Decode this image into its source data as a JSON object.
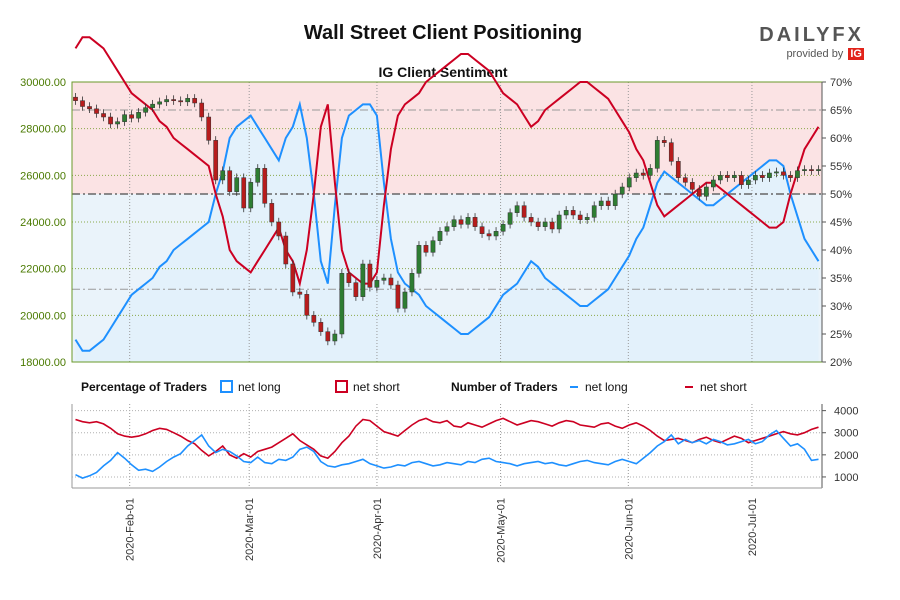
{
  "header": {
    "title": "Wall Street Client Positioning",
    "brand_name": "DAILYFX",
    "brand_tagline": "provided by",
    "brand_badge": "IG"
  },
  "legend": {
    "pct_heading": "Percentage of Traders",
    "pct_long": "net long",
    "pct_short": "net short",
    "num_heading": "Number of Traders",
    "num_long": "net long",
    "num_short": "net short"
  },
  "colors": {
    "long": "#1e90ff",
    "short": "#cc0022",
    "short_zone": "#fbe3e4",
    "long_fill": "#e3f1fb",
    "axis_green": "#4a7a00",
    "up_candle": "#2e7d32",
    "down_candle": "#b71c1c"
  },
  "chart_data": [
    {
      "type": "candlestick",
      "title": "IG Client Sentiment",
      "ylim": [
        18000,
        30000
      ],
      "y2lim": [
        20,
        70
      ],
      "y_ticks": [
        "18000.00",
        "20000.00",
        "22000.00",
        "24000.00",
        "26000.00",
        "28000.00",
        "30000.00"
      ],
      "y2_ticks": [
        "20%",
        "25%",
        "30%",
        "35%",
        "40%",
        "45%",
        "50%",
        "55%",
        "60%",
        "65%",
        "70%"
      ],
      "reference_lines_pct": [
        65,
        50,
        33
      ],
      "x_ticks": [
        "2020-Feb-01",
        "2020-Mar-01",
        "2020-Apr-01",
        "2020-May-01",
        "2020-Jun-01",
        "2020-Jul-01"
      ],
      "price_close": [
        29200,
        28950,
        28850,
        28650,
        28500,
        28200,
        28300,
        28600,
        28450,
        28700,
        28900,
        29050,
        29150,
        29250,
        29200,
        29150,
        29300,
        29100,
        28500,
        27500,
        25800,
        26200,
        25300,
        25900,
        24600,
        25700,
        26300,
        24800,
        24000,
        23400,
        22200,
        21000,
        20900,
        20000,
        19700,
        19300,
        18900,
        19200,
        21800,
        21400,
        20800,
        22200,
        21200,
        21500,
        21600,
        21300,
        20300,
        21000,
        21800,
        23000,
        22700,
        23200,
        23600,
        23800,
        24100,
        23900,
        24200,
        23800,
        23500,
        23400,
        23600,
        23900,
        24400,
        24700,
        24200,
        24000,
        23800,
        24000,
        23700,
        24300,
        24500,
        24300,
        24100,
        24200,
        24700,
        24900,
        24700,
        25200,
        25500,
        25900,
        26100,
        26000,
        26300,
        27500,
        27400,
        26600,
        25900,
        25700,
        25400,
        25100,
        25500,
        25800,
        26000,
        25900,
        26000,
        25600,
        25800,
        26000,
        25900,
        26100,
        26150,
        26000,
        25900,
        26200,
        26250,
        26200,
        26250
      ],
      "pct_long": [
        24,
        22,
        22,
        23,
        24,
        26,
        28,
        30,
        32,
        33,
        34,
        35,
        37,
        38,
        40,
        41,
        42,
        43,
        44,
        45,
        50,
        54,
        60,
        62,
        63,
        64,
        62,
        60,
        58,
        56,
        60,
        62,
        66,
        60,
        50,
        38,
        34,
        48,
        60,
        64,
        65,
        66,
        66,
        64,
        52,
        42,
        36,
        34,
        33,
        32,
        30,
        29,
        28,
        27,
        26,
        25,
        25,
        26,
        27,
        28,
        30,
        32,
        33,
        34,
        36,
        38,
        37,
        35,
        34,
        33,
        32,
        31,
        30,
        30,
        31,
        32,
        33,
        35,
        37,
        39,
        42,
        44,
        48,
        52,
        54,
        53,
        52,
        51,
        50,
        49,
        48,
        48,
        49,
        50,
        51,
        52,
        53,
        54,
        55,
        56,
        56,
        55,
        50,
        46,
        42,
        40,
        38
      ],
      "pct_short": [
        76,
        78,
        78,
        77,
        76,
        74,
        72,
        70,
        68,
        67,
        66,
        65,
        63,
        62,
        60,
        59,
        58,
        57,
        56,
        55,
        50,
        46,
        40,
        38,
        37,
        36,
        38,
        40,
        42,
        44,
        40,
        38,
        34,
        40,
        50,
        62,
        66,
        52,
        40,
        36,
        35,
        34,
        34,
        36,
        48,
        58,
        64,
        66,
        67,
        68,
        70,
        71,
        72,
        73,
        74,
        75,
        75,
        74,
        73,
        72,
        70,
        68,
        67,
        66,
        64,
        62,
        63,
        65,
        66,
        67,
        68,
        69,
        70,
        70,
        69,
        68,
        67,
        65,
        63,
        61,
        58,
        56,
        52,
        48,
        46,
        47,
        48,
        49,
        50,
        51,
        52,
        52,
        51,
        50,
        49,
        48,
        47,
        46,
        45,
        44,
        44,
        45,
        50,
        54,
        58,
        60,
        62
      ],
      "num_long": [
        1100,
        950,
        1050,
        1200,
        1500,
        1750,
        2100,
        1850,
        1550,
        1300,
        1350,
        1250,
        1450,
        1700,
        1900,
        2050,
        2400,
        2650,
        2900,
        2400,
        2100,
        2250,
        2150,
        1950,
        1700,
        1650,
        1900,
        1650,
        1600,
        1800,
        1750,
        1900,
        2250,
        2350,
        2150,
        1700,
        1500,
        1450,
        1550,
        1600,
        1700,
        1800,
        1600,
        1500,
        1400,
        1450,
        1550,
        1500,
        1650,
        1700,
        1600,
        1500,
        1550,
        1650,
        1600,
        1550,
        1700,
        1650,
        1800,
        1850,
        1700,
        1650,
        1600,
        1500,
        1600,
        1650,
        1700,
        1600,
        1650,
        1550,
        1500,
        1600,
        1700,
        1750,
        1650,
        1600,
        1550,
        1700,
        1800,
        1700,
        1600,
        1850,
        2100,
        2400,
        2600,
        2900,
        2500,
        2700,
        2550,
        2650,
        2500,
        2700,
        2600,
        2450,
        2500,
        2600,
        2700,
        2500,
        2600,
        2900,
        3100,
        2750,
        2400,
        2500,
        2250,
        1750,
        1800
      ],
      "num_short": [
        3600,
        3500,
        3450,
        3500,
        3400,
        3200,
        2950,
        2850,
        2800,
        2850,
        2950,
        3100,
        3200,
        3150,
        3000,
        2850,
        2650,
        2500,
        2200,
        1950,
        2150,
        2400,
        2000,
        1850,
        2050,
        1900,
        2150,
        2250,
        2350,
        2550,
        2750,
        2950,
        2650,
        2450,
        2250,
        1950,
        1850,
        2150,
        2550,
        2850,
        3300,
        3600,
        3550,
        3300,
        3050,
        2950,
        2850,
        3100,
        3350,
        3550,
        3650,
        3500,
        3450,
        3550,
        3300,
        3250,
        3450,
        3350,
        3250,
        3400,
        3550,
        3650,
        3500,
        3350,
        3450,
        3550,
        3500,
        3400,
        3300,
        3450,
        3550,
        3500,
        3350,
        3300,
        3250,
        3400,
        3450,
        3300,
        3200,
        3350,
        3450,
        3300,
        3100,
        2850,
        2650,
        2700,
        2750,
        2650,
        2550,
        2700,
        2800,
        2650,
        2550,
        2700,
        2850,
        2750,
        2550,
        2650,
        2750,
        2850,
        2950,
        3050,
        2950,
        2900,
        3000,
        3150,
        3250
      ]
    }
  ]
}
